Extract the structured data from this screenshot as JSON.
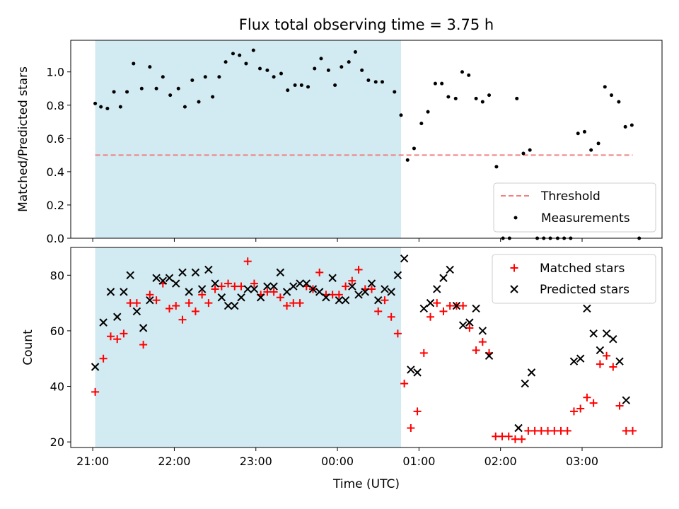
{
  "chart_data": {
    "title": "Flux total observing time = 3.75 h",
    "xlabel": "Time (UTC)",
    "x_ticks": [
      "21:00",
      "22:00",
      "23:00",
      "00:00",
      "01:00",
      "02:00",
      "03:00"
    ],
    "x_unit": "hours after 21:00 UTC",
    "x_range": [
      -0.27,
      6.98
    ],
    "highlight_span": {
      "start": 0.03,
      "end": 3.78,
      "color": "#add8e6"
    },
    "panels": [
      {
        "type": "scatter",
        "ylabel": "Matched/Predicted stars",
        "ylim": [
          0,
          1.19
        ],
        "yticks": [
          "0.0",
          "0.2",
          "0.4",
          "0.6",
          "0.8",
          "1.0"
        ],
        "threshold": {
          "name": "Threshold",
          "value": 0.5,
          "x_start": 0.03,
          "x_end": 6.62,
          "color": "#f08080"
        },
        "legend": {
          "position": "lower-right",
          "entries": [
            "Threshold",
            "Measurements"
          ]
        },
        "series": [
          {
            "name": "Measurements",
            "color": "#000000",
            "points": [
              [
                0.03,
                0.81
              ],
              [
                0.1,
                0.79
              ],
              [
                0.18,
                0.78
              ],
              [
                0.26,
                0.88
              ],
              [
                0.34,
                0.79
              ],
              [
                0.42,
                0.88
              ],
              [
                0.5,
                1.05
              ],
              [
                0.6,
                0.9
              ],
              [
                0.7,
                1.03
              ],
              [
                0.78,
                0.9
              ],
              [
                0.86,
                0.97
              ],
              [
                0.95,
                0.86
              ],
              [
                1.05,
                0.9
              ],
              [
                1.13,
                0.79
              ],
              [
                1.22,
                0.95
              ],
              [
                1.3,
                0.82
              ],
              [
                1.38,
                0.97
              ],
              [
                1.47,
                0.85
              ],
              [
                1.55,
                0.97
              ],
              [
                1.63,
                1.06
              ],
              [
                1.72,
                1.11
              ],
              [
                1.8,
                1.1
              ],
              [
                1.88,
                1.05
              ],
              [
                1.97,
                1.13
              ],
              [
                2.05,
                1.02
              ],
              [
                2.14,
                1.01
              ],
              [
                2.22,
                0.97
              ],
              [
                2.31,
                0.99
              ],
              [
                2.39,
                0.89
              ],
              [
                2.48,
                0.92
              ],
              [
                2.56,
                0.92
              ],
              [
                2.64,
                0.91
              ],
              [
                2.72,
                1.02
              ],
              [
                2.8,
                1.08
              ],
              [
                2.89,
                1.01
              ],
              [
                2.97,
                0.92
              ],
              [
                3.05,
                1.03
              ],
              [
                3.14,
                1.06
              ],
              [
                3.22,
                1.12
              ],
              [
                3.3,
                1.01
              ],
              [
                3.38,
                0.95
              ],
              [
                3.47,
                0.94
              ],
              [
                3.55,
                0.94
              ],
              [
                3.7,
                0.88
              ],
              [
                3.78,
                0.74
              ],
              [
                3.86,
                0.47
              ],
              [
                3.94,
                0.54
              ],
              [
                4.03,
                0.69
              ],
              [
                4.11,
                0.76
              ],
              [
                4.2,
                0.93
              ],
              [
                4.28,
                0.93
              ],
              [
                4.36,
                0.85
              ],
              [
                4.45,
                0.84
              ],
              [
                4.53,
                1.0
              ],
              [
                4.61,
                0.98
              ],
              [
                4.7,
                0.84
              ],
              [
                4.78,
                0.82
              ],
              [
                4.86,
                0.86
              ],
              [
                4.95,
                0.43
              ],
              [
                5.03,
                0.0
              ],
              [
                5.11,
                0.0
              ],
              [
                5.2,
                0.84
              ],
              [
                5.28,
                0.51
              ],
              [
                5.36,
                0.53
              ],
              [
                5.45,
                0.0
              ],
              [
                5.53,
                0.0
              ],
              [
                5.61,
                0.0
              ],
              [
                5.7,
                0.0
              ],
              [
                5.78,
                0.0
              ],
              [
                5.86,
                0.0
              ],
              [
                5.95,
                0.63
              ],
              [
                6.03,
                0.64
              ],
              [
                6.11,
                0.53
              ],
              [
                6.2,
                0.57
              ],
              [
                6.28,
                0.91
              ],
              [
                6.36,
                0.86
              ],
              [
                6.45,
                0.82
              ],
              [
                6.53,
                0.67
              ],
              [
                6.61,
                0.68
              ],
              [
                6.7,
                0.0
              ]
            ]
          }
        ]
      },
      {
        "type": "scatter",
        "ylabel": "Count",
        "ylim": [
          18,
          90
        ],
        "yticks": [
          "20",
          "40",
          "60",
          "80"
        ],
        "legend": {
          "position": "upper-right",
          "entries": [
            "Matched stars",
            "Predicted stars"
          ]
        },
        "series": [
          {
            "name": "Matched stars",
            "marker": "+",
            "color": "#ff0000",
            "points": [
              [
                0.03,
                38
              ],
              [
                0.13,
                50
              ],
              [
                0.22,
                58
              ],
              [
                0.3,
                57
              ],
              [
                0.38,
                59
              ],
              [
                0.46,
                70
              ],
              [
                0.54,
                70
              ],
              [
                0.62,
                55
              ],
              [
                0.7,
                73
              ],
              [
                0.78,
                71
              ],
              [
                0.86,
                77
              ],
              [
                0.94,
                68
              ],
              [
                1.02,
                69
              ],
              [
                1.1,
                64
              ],
              [
                1.18,
                70
              ],
              [
                1.26,
                67
              ],
              [
                1.34,
                73
              ],
              [
                1.42,
                70
              ],
              [
                1.5,
                75
              ],
              [
                1.58,
                76
              ],
              [
                1.66,
                77
              ],
              [
                1.74,
                76
              ],
              [
                1.82,
                76
              ],
              [
                1.9,
                85
              ],
              [
                1.98,
                77
              ],
              [
                2.06,
                73
              ],
              [
                2.14,
                74
              ],
              [
                2.22,
                74
              ],
              [
                2.3,
                72
              ],
              [
                2.38,
                69
              ],
              [
                2.46,
                70
              ],
              [
                2.54,
                70
              ],
              [
                2.62,
                76
              ],
              [
                2.7,
                75
              ],
              [
                2.78,
                81
              ],
              [
                2.86,
                73
              ],
              [
                2.94,
                73
              ],
              [
                3.02,
                73
              ],
              [
                3.1,
                76
              ],
              [
                3.18,
                78
              ],
              [
                3.26,
                82
              ],
              [
                3.34,
                75
              ],
              [
                3.42,
                75
              ],
              [
                3.5,
                67
              ],
              [
                3.58,
                71
              ],
              [
                3.66,
                65
              ],
              [
                3.74,
                59
              ],
              [
                3.82,
                41
              ],
              [
                3.9,
                25
              ],
              [
                3.98,
                31
              ],
              [
                4.06,
                52
              ],
              [
                4.14,
                65
              ],
              [
                4.22,
                70
              ],
              [
                4.3,
                67
              ],
              [
                4.38,
                69
              ],
              [
                4.46,
                69
              ],
              [
                4.54,
                69
              ],
              [
                4.62,
                61
              ],
              [
                4.7,
                53
              ],
              [
                4.78,
                56
              ],
              [
                4.86,
                52
              ],
              [
                4.94,
                22
              ],
              [
                5.02,
                22
              ],
              [
                5.1,
                22
              ],
              [
                5.18,
                21
              ],
              [
                5.26,
                21
              ],
              [
                5.34,
                24
              ],
              [
                5.42,
                24
              ],
              [
                5.5,
                24
              ],
              [
                5.58,
                24
              ],
              [
                5.66,
                24
              ],
              [
                5.74,
                24
              ],
              [
                5.82,
                24
              ],
              [
                5.9,
                31
              ],
              [
                5.98,
                32
              ],
              [
                6.06,
                36
              ],
              [
                6.14,
                34
              ],
              [
                6.22,
                48
              ],
              [
                6.3,
                51
              ],
              [
                6.38,
                47
              ],
              [
                6.46,
                33
              ],
              [
                6.54,
                24
              ],
              [
                6.62,
                24
              ]
            ]
          },
          {
            "name": "Predicted stars",
            "marker": "x",
            "color": "#000000",
            "points": [
              [
                0.03,
                47
              ],
              [
                0.13,
                63
              ],
              [
                0.22,
                74
              ],
              [
                0.3,
                65
              ],
              [
                0.38,
                74
              ],
              [
                0.46,
                80
              ],
              [
                0.54,
                67
              ],
              [
                0.62,
                61
              ],
              [
                0.7,
                71
              ],
              [
                0.78,
                79
              ],
              [
                0.86,
                78
              ],
              [
                0.94,
                79
              ],
              [
                1.02,
                77
              ],
              [
                1.1,
                81
              ],
              [
                1.18,
                74
              ],
              [
                1.26,
                81
              ],
              [
                1.34,
                75
              ],
              [
                1.42,
                82
              ],
              [
                1.5,
                77
              ],
              [
                1.58,
                72
              ],
              [
                1.66,
                69
              ],
              [
                1.74,
                69
              ],
              [
                1.82,
                72
              ],
              [
                1.9,
                75
              ],
              [
                1.98,
                75
              ],
              [
                2.06,
                72
              ],
              [
                2.14,
                76
              ],
              [
                2.22,
                76
              ],
              [
                2.3,
                81
              ],
              [
                2.38,
                74
              ],
              [
                2.46,
                76
              ],
              [
                2.54,
                77
              ],
              [
                2.62,
                77
              ],
              [
                2.7,
                75
              ],
              [
                2.78,
                74
              ],
              [
                2.86,
                72
              ],
              [
                2.94,
                79
              ],
              [
                3.02,
                71
              ],
              [
                3.1,
                71
              ],
              [
                3.18,
                76
              ],
              [
                3.26,
                73
              ],
              [
                3.34,
                74
              ],
              [
                3.42,
                77
              ],
              [
                3.5,
                71
              ],
              [
                3.58,
                75
              ],
              [
                3.66,
                74
              ],
              [
                3.74,
                80
              ],
              [
                3.82,
                86
              ],
              [
                3.9,
                46
              ],
              [
                3.98,
                45
              ],
              [
                4.06,
                68
              ],
              [
                4.14,
                70
              ],
              [
                4.22,
                75
              ],
              [
                4.3,
                79
              ],
              [
                4.38,
                82
              ],
              [
                4.46,
                69
              ],
              [
                4.54,
                62
              ],
              [
                4.62,
                63
              ],
              [
                4.7,
                68
              ],
              [
                4.78,
                60
              ],
              [
                4.86,
                51
              ],
              [
                5.22,
                25
              ],
              [
                5.3,
                41
              ],
              [
                5.38,
                45
              ],
              [
                5.9,
                49
              ],
              [
                5.98,
                50
              ],
              [
                6.06,
                68
              ],
              [
                6.14,
                59
              ],
              [
                6.22,
                53
              ],
              [
                6.3,
                59
              ],
              [
                6.38,
                57
              ],
              [
                6.46,
                49
              ],
              [
                6.54,
                35
              ]
            ]
          }
        ]
      }
    ]
  }
}
